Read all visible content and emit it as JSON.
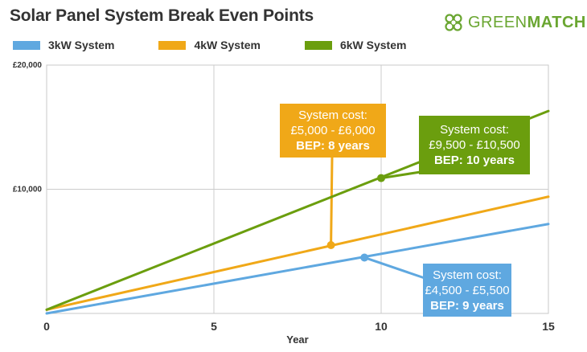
{
  "title": "Solar Panel System Break Even Points",
  "brand": {
    "icon": "clover-logo-icon",
    "part1": "GREEN",
    "part2": "MATCH",
    "color": "#6aa631"
  },
  "chart_data": {
    "type": "line",
    "title": "Solar Panel System Break Even Points",
    "xlabel": "Year",
    "ylabel": "",
    "xlim": [
      0,
      15
    ],
    "ylim": [
      0,
      20000
    ],
    "xticks": [
      "0",
      "5",
      "10",
      "15"
    ],
    "yticks": [
      {
        "value": 10000,
        "label": "£10,000"
      },
      {
        "value": 20000,
        "label": "£20,000"
      }
    ],
    "grid": true,
    "legend_position": "top",
    "series": [
      {
        "name": "3kW System",
        "color": "#5fa8e0",
        "points": [
          [
            0,
            0
          ],
          [
            15,
            7200
          ]
        ],
        "marker": [
          9.5,
          4500
        ]
      },
      {
        "name": "4kW System",
        "color": "#f0a818",
        "points": [
          [
            0,
            300
          ],
          [
            15,
            9400
          ]
        ],
        "marker": [
          8.5,
          5500
        ]
      },
      {
        "name": "6kW System",
        "color": "#6b9e0e",
        "points": [
          [
            0,
            300
          ],
          [
            15,
            16300
          ]
        ],
        "marker": [
          10,
          10900
        ]
      }
    ],
    "annotations": [
      {
        "series": "4kW System",
        "line1": "System cost:",
        "line2": "£5,000 - £6,000",
        "line3": "BEP: 8 years",
        "color": "#f0a818"
      },
      {
        "series": "6kW System",
        "line1": "System cost:",
        "line2": "£9,500 - £10,500",
        "line3": "BEP: 10 years",
        "color": "#6b9e0e"
      },
      {
        "series": "3kW System",
        "line1": "System cost:",
        "line2": "£4,500 - £5,500",
        "line3": "BEP: 9 years",
        "color": "#5fa8e0"
      }
    ]
  }
}
